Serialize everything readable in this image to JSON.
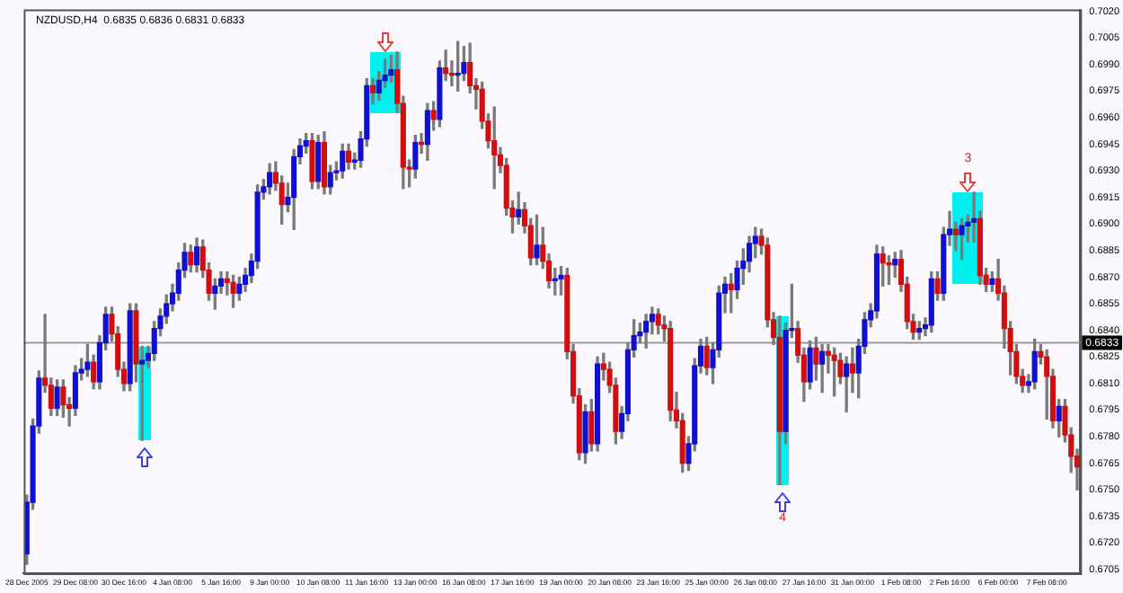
{
  "chart_data": {
    "type": "candlestick",
    "title": "NZDUSD,H4  0.6835 0.6836 0.6831 0.6833",
    "categories": [
      "28 Dec 2005",
      null,
      null,
      null,
      null,
      null,
      null,
      null,
      "29 Dec 08:00",
      null,
      null,
      null,
      null,
      null,
      null,
      null,
      "30 Dec 16:00",
      null,
      null,
      null,
      null,
      null,
      null,
      null,
      "4 Jan 08:00",
      null,
      null,
      null,
      null,
      null,
      null,
      null,
      "5 Jan 16:00",
      null,
      null,
      null,
      null,
      null,
      null,
      null,
      "9 Jan 00:00",
      null,
      null,
      null,
      null,
      null,
      null,
      null,
      "10 Jan 08:00",
      null,
      null,
      null,
      null,
      null,
      null,
      null,
      "11 Jan 16:00",
      null,
      null,
      null,
      null,
      null,
      null,
      null,
      "13 Jan 00:00",
      null,
      null,
      null,
      null,
      null,
      null,
      null,
      "16 Jan 08:00",
      null,
      null,
      null,
      null,
      null,
      null,
      null,
      "17 Jan 16:00",
      null,
      null,
      null,
      null,
      null,
      null,
      null,
      "19 Jan 00:00",
      null,
      null,
      null,
      null,
      null,
      null,
      null,
      "20 Jan 08:00",
      null,
      null,
      null,
      null,
      null,
      null,
      null,
      "23 Jan 16:00",
      null,
      null,
      null,
      null,
      null,
      null,
      null,
      "25 Jan 00:00",
      null,
      null,
      null,
      null,
      null,
      null,
      null,
      "26 Jan 08:00",
      null,
      null,
      null,
      null,
      null,
      null,
      null,
      "27 Jan 16:00",
      null,
      null,
      null,
      null,
      null,
      null,
      null,
      "31 Jan 00:00",
      null,
      null,
      null,
      null,
      null,
      null,
      null,
      "1 Feb 08:00",
      null,
      null,
      null,
      null,
      null,
      null,
      null,
      "2 Feb 16:00",
      null,
      null,
      null,
      null,
      null,
      null,
      null,
      "6 Feb 00:00",
      null,
      null,
      null,
      null,
      null,
      null,
      null,
      "7 Feb 08:00",
      null,
      null,
      null,
      null,
      null
    ],
    "ohlc": [
      [
        0.6714,
        0.6747,
        0.6708,
        0.6743
      ],
      [
        0.6743,
        0.679,
        0.6739,
        0.6786
      ],
      [
        0.6786,
        0.6817,
        0.6782,
        0.6813
      ],
      [
        0.6813,
        0.6849,
        0.6805,
        0.6809
      ],
      [
        0.6809,
        0.6813,
        0.6792,
        0.6796
      ],
      [
        0.6796,
        0.6812,
        0.6792,
        0.6808
      ],
      [
        0.6808,
        0.6812,
        0.6791,
        0.6798
      ],
      [
        0.6798,
        0.6802,
        0.6786,
        0.6796
      ],
      [
        0.6796,
        0.682,
        0.6792,
        0.6816
      ],
      [
        0.6816,
        0.6824,
        0.6812,
        0.6818
      ],
      [
        0.6818,
        0.6832,
        0.6814,
        0.6822
      ],
      [
        0.6822,
        0.6826,
        0.6807,
        0.6811
      ],
      [
        0.6811,
        0.6837,
        0.6807,
        0.6833
      ],
      [
        0.6833,
        0.6853,
        0.6829,
        0.6849
      ],
      [
        0.6849,
        0.6853,
        0.6834,
        0.6838
      ],
      [
        0.6838,
        0.6842,
        0.6814,
        0.6818
      ],
      [
        0.6818,
        0.6822,
        0.6806,
        0.681
      ],
      [
        0.681,
        0.6855,
        0.6806,
        0.6851
      ],
      [
        0.6851,
        0.6855,
        0.6811,
        0.6821
      ],
      [
        0.6821,
        0.6831,
        0.6778,
        0.6823
      ],
      [
        0.6823,
        0.6831,
        0.6819,
        0.6827
      ],
      [
        0.6827,
        0.6845,
        0.6823,
        0.6841
      ],
      [
        0.6841,
        0.6852,
        0.6837,
        0.6848
      ],
      [
        0.6848,
        0.686,
        0.6844,
        0.6855
      ],
      [
        0.6855,
        0.6866,
        0.6851,
        0.6861
      ],
      [
        0.6861,
        0.6878,
        0.6857,
        0.6874
      ],
      [
        0.6874,
        0.6889,
        0.687,
        0.6884
      ],
      [
        0.6884,
        0.6888,
        0.6873,
        0.6877
      ],
      [
        0.6877,
        0.6892,
        0.6873,
        0.6887
      ],
      [
        0.6887,
        0.6891,
        0.687,
        0.6874
      ],
      [
        0.6874,
        0.6878,
        0.6857,
        0.6861
      ],
      [
        0.6861,
        0.6869,
        0.6852,
        0.6865
      ],
      [
        0.6865,
        0.6873,
        0.6861,
        0.6869
      ],
      [
        0.6869,
        0.6873,
        0.686,
        0.6867
      ],
      [
        0.6867,
        0.6871,
        0.6853,
        0.6861
      ],
      [
        0.6861,
        0.687,
        0.6857,
        0.6866
      ],
      [
        0.6866,
        0.6875,
        0.6862,
        0.6871
      ],
      [
        0.6871,
        0.6883,
        0.6867,
        0.6879
      ],
      [
        0.6879,
        0.6922,
        0.6875,
        0.6918
      ],
      [
        0.6918,
        0.6925,
        0.6914,
        0.6921
      ],
      [
        0.6921,
        0.6934,
        0.6917,
        0.6929
      ],
      [
        0.6929,
        0.6935,
        0.6919,
        0.6923
      ],
      [
        0.6923,
        0.6927,
        0.69,
        0.6911
      ],
      [
        0.6911,
        0.6923,
        0.6907,
        0.6915
      ],
      [
        0.6915,
        0.6942,
        0.6897,
        0.6938
      ],
      [
        0.6938,
        0.6948,
        0.6934,
        0.6944
      ],
      [
        0.6944,
        0.6951,
        0.694,
        0.6947
      ],
      [
        0.6947,
        0.6951,
        0.692,
        0.6924
      ],
      [
        0.6924,
        0.695,
        0.692,
        0.6946
      ],
      [
        0.6946,
        0.6952,
        0.6917,
        0.6921
      ],
      [
        0.6921,
        0.6933,
        0.6917,
        0.6929
      ],
      [
        0.6929,
        0.6935,
        0.6925,
        0.693
      ],
      [
        0.693,
        0.6945,
        0.6926,
        0.6941
      ],
      [
        0.6941,
        0.6945,
        0.6931,
        0.6935
      ],
      [
        0.6935,
        0.694,
        0.6931,
        0.6936
      ],
      [
        0.6936,
        0.6952,
        0.6932,
        0.6948
      ],
      [
        0.6948,
        0.6982,
        0.6944,
        0.6978
      ],
      [
        0.6978,
        0.6982,
        0.6968,
        0.6974
      ],
      [
        0.6974,
        0.6986,
        0.697,
        0.6981
      ],
      [
        0.6981,
        0.6993,
        0.6977,
        0.6984
      ],
      [
        0.6984,
        0.6995,
        0.698,
        0.6987
      ],
      [
        0.6987,
        0.6997,
        0.6963,
        0.6968
      ],
      [
        0.6968,
        0.6972,
        0.692,
        0.6932
      ],
      [
        0.6932,
        0.6936,
        0.6921,
        0.6931
      ],
      [
        0.6931,
        0.695,
        0.6926,
        0.6946
      ],
      [
        0.6946,
        0.6951,
        0.694,
        0.6945
      ],
      [
        0.6945,
        0.6968,
        0.6936,
        0.6964
      ],
      [
        0.6964,
        0.6969,
        0.6953,
        0.6959
      ],
      [
        0.6959,
        0.6992,
        0.6955,
        0.6988
      ],
      [
        0.6988,
        0.6998,
        0.6981,
        0.6985
      ],
      [
        0.6985,
        0.6992,
        0.6978,
        0.6984
      ],
      [
        0.6984,
        0.7003,
        0.6975,
        0.6985
      ],
      [
        0.6985,
        0.7,
        0.6981,
        0.6991
      ],
      [
        0.6991,
        0.7002,
        0.6974,
        0.6978
      ],
      [
        0.6978,
        0.6982,
        0.6965,
        0.6976
      ],
      [
        0.6976,
        0.698,
        0.6954,
        0.6958
      ],
      [
        0.6958,
        0.6962,
        0.6943,
        0.6947
      ],
      [
        0.6947,
        0.6966,
        0.692,
        0.6939
      ],
      [
        0.6939,
        0.6943,
        0.6929,
        0.6933
      ],
      [
        0.6933,
        0.6937,
        0.6905,
        0.6909
      ],
      [
        0.6909,
        0.6913,
        0.6895,
        0.6904
      ],
      [
        0.6904,
        0.6918,
        0.69,
        0.6908
      ],
      [
        0.6908,
        0.6912,
        0.6895,
        0.6899
      ],
      [
        0.6899,
        0.6903,
        0.6877,
        0.6881
      ],
      [
        0.6881,
        0.6905,
        0.6877,
        0.6888
      ],
      [
        0.6888,
        0.6898,
        0.6875,
        0.6879
      ],
      [
        0.6879,
        0.6883,
        0.6864,
        0.6868
      ],
      [
        0.6868,
        0.6875,
        0.686,
        0.6869
      ],
      [
        0.6869,
        0.6876,
        0.686,
        0.6871
      ],
      [
        0.6871,
        0.6875,
        0.6824,
        0.6828
      ],
      [
        0.6828,
        0.6832,
        0.6799,
        0.6803
      ],
      [
        0.6803,
        0.6807,
        0.6767,
        0.6771
      ],
      [
        0.6771,
        0.6798,
        0.6765,
        0.6794
      ],
      [
        0.6794,
        0.6801,
        0.6772,
        0.6776
      ],
      [
        0.6776,
        0.6825,
        0.6772,
        0.6821
      ],
      [
        0.6821,
        0.6827,
        0.6812,
        0.6818
      ],
      [
        0.6818,
        0.6822,
        0.6805,
        0.6809
      ],
      [
        0.6809,
        0.6813,
        0.6776,
        0.6783
      ],
      [
        0.6783,
        0.6797,
        0.6779,
        0.6793
      ],
      [
        0.6793,
        0.6833,
        0.6789,
        0.6829
      ],
      [
        0.6829,
        0.6846,
        0.6825,
        0.6837
      ],
      [
        0.6837,
        0.6844,
        0.6833,
        0.6839
      ],
      [
        0.6839,
        0.6849,
        0.683,
        0.6845
      ],
      [
        0.6845,
        0.6853,
        0.6838,
        0.6849
      ],
      [
        0.6849,
        0.6852,
        0.6838,
        0.6843
      ],
      [
        0.6843,
        0.6848,
        0.6834,
        0.6841
      ],
      [
        0.6841,
        0.6845,
        0.6789,
        0.6795
      ],
      [
        0.6795,
        0.6805,
        0.6785,
        0.6789
      ],
      [
        0.6789,
        0.6793,
        0.676,
        0.6765
      ],
      [
        0.6765,
        0.678,
        0.6761,
        0.6776
      ],
      [
        0.6776,
        0.6824,
        0.6772,
        0.682
      ],
      [
        0.682,
        0.6835,
        0.6816,
        0.6831
      ],
      [
        0.6831,
        0.6836,
        0.6815,
        0.6819
      ],
      [
        0.6819,
        0.6833,
        0.681,
        0.6829
      ],
      [
        0.6829,
        0.6865,
        0.6825,
        0.6861
      ],
      [
        0.6861,
        0.687,
        0.685,
        0.6866
      ],
      [
        0.6866,
        0.6872,
        0.685,
        0.6863
      ],
      [
        0.6863,
        0.6879,
        0.6858,
        0.6875
      ],
      [
        0.6875,
        0.6886,
        0.6866,
        0.6879
      ],
      [
        0.6879,
        0.6893,
        0.6873,
        0.6889
      ],
      [
        0.6889,
        0.6898,
        0.6881,
        0.6893
      ],
      [
        0.6893,
        0.6897,
        0.6883,
        0.6888
      ],
      [
        0.6888,
        0.6892,
        0.6842,
        0.6846
      ],
      [
        0.6846,
        0.685,
        0.6832,
        0.6836
      ],
      [
        0.6836,
        0.6848,
        0.6753,
        0.6783
      ],
      [
        0.6783,
        0.6844,
        0.6776,
        0.684
      ],
      [
        0.684,
        0.6866,
        0.6836,
        0.6841
      ],
      [
        0.6841,
        0.6845,
        0.6822,
        0.6826
      ],
      [
        0.6826,
        0.683,
        0.68,
        0.6811
      ],
      [
        0.6811,
        0.6834,
        0.6807,
        0.683
      ],
      [
        0.683,
        0.6836,
        0.6812,
        0.6821
      ],
      [
        0.6821,
        0.6832,
        0.6805,
        0.6828
      ],
      [
        0.6828,
        0.6832,
        0.6816,
        0.6826
      ],
      [
        0.6826,
        0.683,
        0.6803,
        0.6823
      ],
      [
        0.6823,
        0.6827,
        0.681,
        0.6814
      ],
      [
        0.6814,
        0.6825,
        0.6794,
        0.6821
      ],
      [
        0.6821,
        0.683,
        0.6805,
        0.6816
      ],
      [
        0.6816,
        0.6835,
        0.6802,
        0.6831
      ],
      [
        0.6831,
        0.685,
        0.6827,
        0.6846
      ],
      [
        0.6846,
        0.6855,
        0.6842,
        0.6851
      ],
      [
        0.6851,
        0.6888,
        0.6847,
        0.6883
      ],
      [
        0.6883,
        0.6887,
        0.6865,
        0.6878
      ],
      [
        0.6878,
        0.6882,
        0.6866,
        0.6877
      ],
      [
        0.6877,
        0.6884,
        0.687,
        0.688
      ],
      [
        0.688,
        0.6885,
        0.6862,
        0.6866
      ],
      [
        0.6866,
        0.687,
        0.6841,
        0.6845
      ],
      [
        0.6845,
        0.6849,
        0.6835,
        0.6839
      ],
      [
        0.6839,
        0.6845,
        0.6835,
        0.6841
      ],
      [
        0.6841,
        0.6847,
        0.6837,
        0.6843
      ],
      [
        0.6843,
        0.6873,
        0.6839,
        0.6869
      ],
      [
        0.6869,
        0.6873,
        0.6857,
        0.6861
      ],
      [
        0.6861,
        0.6898,
        0.6857,
        0.6894
      ],
      [
        0.6894,
        0.6907,
        0.6888,
        0.6897
      ],
      [
        0.6897,
        0.6901,
        0.6885,
        0.6894
      ],
      [
        0.6894,
        0.6903,
        0.688,
        0.6899
      ],
      [
        0.6899,
        0.6905,
        0.689,
        0.6901
      ],
      [
        0.6901,
        0.6918,
        0.689,
        0.6903
      ],
      [
        0.6903,
        0.6907,
        0.6866,
        0.6871
      ],
      [
        0.6871,
        0.6875,
        0.6862,
        0.6866
      ],
      [
        0.6866,
        0.6873,
        0.6862,
        0.6869
      ],
      [
        0.6869,
        0.688,
        0.6857,
        0.6861
      ],
      [
        0.6861,
        0.6865,
        0.683,
        0.6841
      ],
      [
        0.6841,
        0.6845,
        0.6815,
        0.6828
      ],
      [
        0.6828,
        0.6832,
        0.681,
        0.6814
      ],
      [
        0.6814,
        0.6818,
        0.6805,
        0.6809
      ],
      [
        0.6809,
        0.6815,
        0.6805,
        0.6811
      ],
      [
        0.6811,
        0.6835,
        0.6807,
        0.6828
      ],
      [
        0.6828,
        0.6832,
        0.6821,
        0.6825
      ],
      [
        0.6825,
        0.6829,
        0.679,
        0.6814
      ],
      [
        0.6814,
        0.6818,
        0.6785,
        0.6789
      ],
      [
        0.6789,
        0.6801,
        0.678,
        0.6797
      ],
      [
        0.6797,
        0.6801,
        0.6777,
        0.6781
      ],
      [
        0.6781,
        0.6785,
        0.676,
        0.6769
      ],
      [
        0.6769,
        0.6773,
        0.675,
        0.6763
      ]
    ],
    "colors": [
      "#1010d0",
      "#1010d0",
      "#1010d0",
      "#d01010",
      "#d01010",
      "#1010d0",
      "#d01010",
      "#d01010",
      "#1010d0",
      "#1010d0",
      "#1010d0",
      "#d01010",
      "#1010d0",
      "#1010d0",
      "#d01010",
      "#d01010",
      "#d01010",
      "#1010d0",
      "#d01010",
      "#1010d0",
      "#1010d0",
      "#1010d0",
      "#1010d0",
      "#1010d0",
      "#1010d0",
      "#1010d0",
      "#1010d0",
      "#d01010",
      "#1010d0",
      "#d01010",
      "#d01010",
      "#1010d0",
      "#1010d0",
      "#d01010",
      "#d01010",
      "#1010d0",
      "#1010d0",
      "#1010d0",
      "#1010d0",
      "#1010d0",
      "#1010d0",
      "#d01010",
      "#d01010",
      "#1010d0",
      "#1010d0",
      "#1010d0",
      "#1010d0",
      "#d01010",
      "#1010d0",
      "#d01010",
      "#1010d0",
      "#1010d0",
      "#1010d0",
      "#d01010",
      "#1010d0",
      "#1010d0",
      "#1010d0",
      "#d01010",
      "#1010d0",
      "#1010d0",
      "#1010d0",
      "#d01010",
      "#d01010",
      "#d01010",
      "#1010d0",
      "#d01010",
      "#1010d0",
      "#d01010",
      "#1010d0",
      "#d01010",
      "#d01010",
      "#1010d0",
      "#1010d0",
      "#d01010",
      "#d01010",
      "#d01010",
      "#d01010",
      "#d01010",
      "#d01010",
      "#d01010",
      "#d01010",
      "#1010d0",
      "#d01010",
      "#d01010",
      "#1010d0",
      "#d01010",
      "#d01010",
      "#1010d0",
      "#1010d0",
      "#d01010",
      "#d01010",
      "#d01010",
      "#1010d0",
      "#d01010",
      "#1010d0",
      "#d01010",
      "#d01010",
      "#d01010",
      "#1010d0",
      "#1010d0",
      "#1010d0",
      "#1010d0",
      "#1010d0",
      "#1010d0",
      "#d01010",
      "#d01010",
      "#d01010",
      "#d01010",
      "#d01010",
      "#1010d0",
      "#1010d0",
      "#1010d0",
      "#d01010",
      "#1010d0",
      "#1010d0",
      "#1010d0",
      "#d01010",
      "#1010d0",
      "#1010d0",
      "#1010d0",
      "#1010d0",
      "#d01010",
      "#d01010",
      "#d01010",
      "#d01010",
      "#1010d0",
      "#1010d0",
      "#d01010",
      "#d01010",
      "#1010d0",
      "#d01010",
      "#1010d0",
      "#d01010",
      "#d01010",
      "#d01010",
      "#1010d0",
      "#d01010",
      "#1010d0",
      "#1010d0",
      "#1010d0",
      "#1010d0",
      "#d01010",
      "#d01010",
      "#1010d0",
      "#d01010",
      "#d01010",
      "#d01010",
      "#1010d0",
      "#1010d0",
      "#1010d0",
      "#d01010",
      "#1010d0",
      "#1010d0",
      "#d01010",
      "#1010d0",
      "#1010d0",
      "#1010d0",
      "#d01010",
      "#d01010",
      "#1010d0",
      "#d01010",
      "#d01010",
      "#d01010",
      "#d01010",
      "#d01010",
      "#1010d0",
      "#1010d0",
      "#d01010",
      "#d01010",
      "#d01010",
      "#1010d0",
      "#d01010",
      "#d01010",
      "#d01010"
    ],
    "ylim": [
      0.6703,
      0.7021
    ],
    "yticks": [
      0.6705,
      {
        "value": 0.672,
        "label": "0.6720"
      },
      0.6735,
      {
        "value": 0.675,
        "label": "0.6750"
      },
      0.6765,
      {
        "value": 0.678,
        "label": "0.6780"
      },
      0.6795,
      {
        "value": 0.681,
        "label": "0.6810"
      },
      0.6825,
      {
        "value": 0.684,
        "label": "0.6840"
      },
      0.6855,
      {
        "value": 0.687,
        "label": "0.6870"
      },
      0.6885,
      {
        "value": 0.69,
        "label": "0.6900"
      },
      0.6915,
      {
        "value": 0.693,
        "label": "0.6930"
      },
      0.6945,
      {
        "value": 0.696,
        "label": "0.6960"
      },
      0.6975,
      {
        "value": 0.699,
        "label": "0.6990"
      },
      0.7005,
      {
        "value": 0.702,
        "label": "0.7020"
      }
    ],
    "ref_lines": [
      {
        "axis": "y",
        "value": 0.6833,
        "label": "0.6833",
        "color": "#999999"
      }
    ],
    "annotations": [
      "3",
      "4"
    ]
  }
}
